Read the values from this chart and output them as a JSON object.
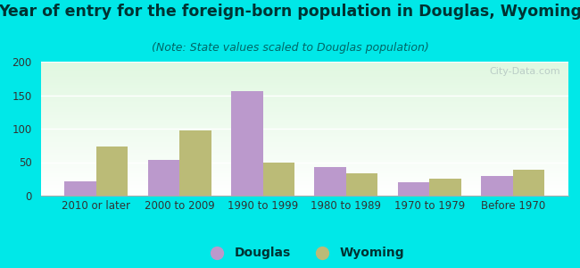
{
  "title": "Year of entry for the foreign-born population in Douglas, Wyoming",
  "subtitle": "(Note: State values scaled to Douglas population)",
  "categories": [
    "2010 or later",
    "2000 to 2009",
    "1990 to 1999",
    "1980 to 1989",
    "1970 to 1979",
    "Before 1970"
  ],
  "douglas_values": [
    22,
    53,
    156,
    43,
    20,
    29
  ],
  "wyoming_values": [
    74,
    98,
    50,
    33,
    25,
    39
  ],
  "douglas_color": "#bb99cc",
  "wyoming_color": "#bbbb77",
  "background_outer": "#00e8e8",
  "ylim": [
    0,
    200
  ],
  "yticks": [
    0,
    50,
    100,
    150,
    200
  ],
  "bar_width": 0.38,
  "title_fontsize": 12.5,
  "subtitle_fontsize": 9,
  "legend_fontsize": 10,
  "tick_fontsize": 8.5,
  "title_color": "#003333",
  "subtitle_color": "#006666",
  "tick_color": "#333333"
}
